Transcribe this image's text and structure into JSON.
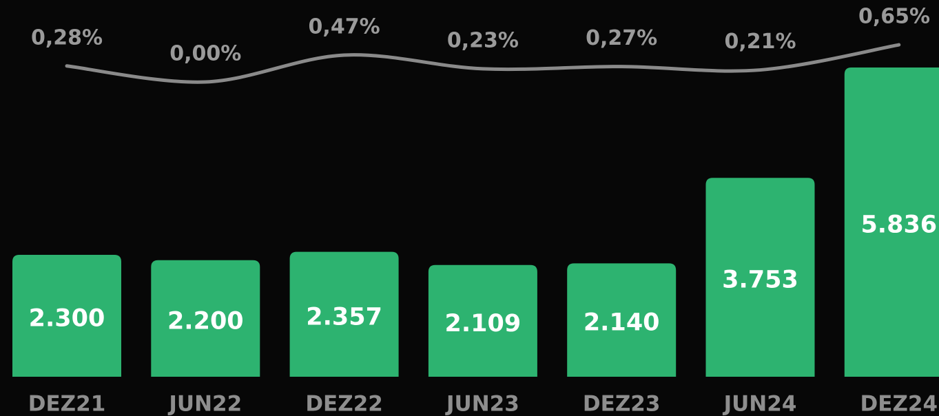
{
  "chart_data": {
    "type": "bar",
    "categories": [
      "DEZ21",
      "JUN22",
      "DEZ22",
      "JUN23",
      "DEZ23",
      "JUN24",
      "DEZ24"
    ],
    "series": [
      {
        "type": "bar",
        "color": "#2db370",
        "values": [
          2300,
          2200,
          2357,
          2109,
          2140,
          3753,
          5836
        ],
        "value_labels": [
          "2.300",
          "2.200",
          "2.357",
          "2.109",
          "2.140",
          "3.753",
          "5.836"
        ]
      },
      {
        "type": "line",
        "color": "#8a8a8a",
        "values": [
          0.28,
          0.0,
          0.47,
          0.23,
          0.27,
          0.21,
          0.65
        ],
        "value_labels": [
          "0,28%",
          "0,00%",
          "0,47%",
          "0,23%",
          "0,27%",
          "0,21%",
          "0,65%"
        ]
      }
    ]
  }
}
